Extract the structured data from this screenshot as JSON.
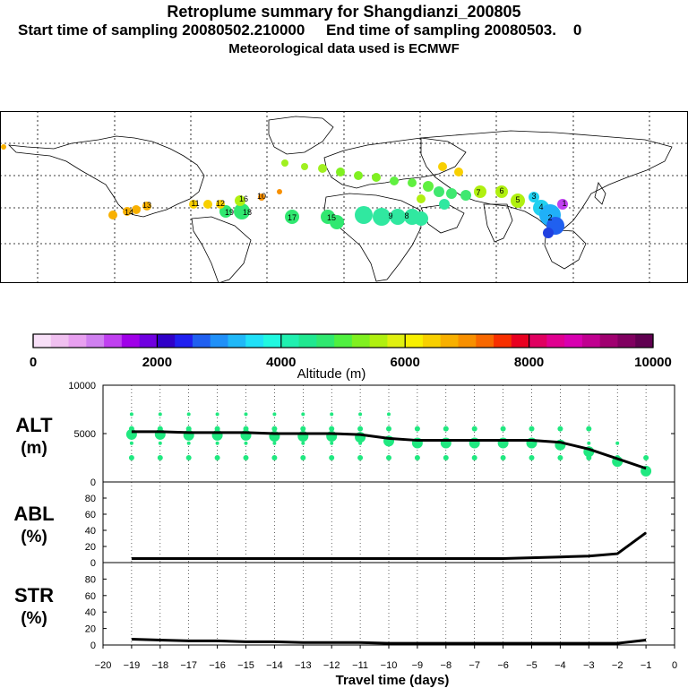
{
  "header": {
    "title": "Retroplume summary for Shangdianzi_200805",
    "start_label": "Start time of sampling 20080502.210000",
    "end_label": "End time of sampling 20080503.",
    "end_value": "0",
    "met_label": "Meteorological data used is ECMWF"
  },
  "colorbar": {
    "ticks": [
      "0",
      "2000",
      "4000",
      "6000",
      "8000",
      "10000"
    ],
    "label": "Altitude (m)",
    "colors": [
      "#f8e0f8",
      "#f0c0f0",
      "#e8a0f0",
      "#d080f0",
      "#c040f0",
      "#a000e8",
      "#7000e0",
      "#3000c8",
      "#2020f0",
      "#2060f0",
      "#2090f8",
      "#20b8f8",
      "#20e0f8",
      "#20f8e0",
      "#20f0b0",
      "#20e890",
      "#30e870",
      "#50f040",
      "#80f020",
      "#b0f010",
      "#e0f010",
      "#f8f000",
      "#f8d000",
      "#f8b000",
      "#f89000",
      "#f86800",
      "#f83000",
      "#e80020",
      "#e00060",
      "#e00090",
      "#d800b0",
      "#c00090",
      "#a00070",
      "#800060",
      "#600050"
    ]
  },
  "map": {
    "labels": [
      "19",
      "18",
      "17",
      "16",
      "15",
      "14",
      "13",
      "12",
      "11",
      "10",
      "9",
      "8",
      "7",
      "6",
      "5",
      "4",
      "3",
      "2",
      "1"
    ]
  },
  "chart_data": [
    {
      "type": "line",
      "name": "ALT",
      "ylabel": "ALT",
      "yunit": "(m)",
      "xlabel": "Travel time (days)",
      "ylim": [
        0,
        10000
      ],
      "yticks": [
        "0",
        "5000",
        "10000"
      ],
      "x": [
        -19,
        -18,
        -17,
        -16,
        -15,
        -14,
        -13,
        -12,
        -11,
        -10,
        -9,
        -8,
        -7,
        -6,
        -5,
        -4,
        -3,
        -2,
        -1
      ],
      "values": [
        5200,
        5200,
        5100,
        5100,
        5100,
        5000,
        5000,
        5000,
        4900,
        4500,
        4300,
        4300,
        4300,
        4300,
        4300,
        4100,
        3400,
        2400,
        1400
      ],
      "scatter_rows": [
        7000,
        5500,
        4000,
        2500
      ],
      "scatter_color": "#20e880"
    },
    {
      "type": "line",
      "name": "ABL",
      "ylabel": "ABL",
      "yunit": "(%)",
      "ylim": [
        0,
        100
      ],
      "yticks": [
        "0",
        "20",
        "40",
        "60",
        "80"
      ],
      "x": [
        -19,
        -18,
        -17,
        -16,
        -15,
        -14,
        -13,
        -12,
        -11,
        -10,
        -9,
        -8,
        -7,
        -6,
        -5,
        -4,
        -3,
        -2,
        -1
      ],
      "values": [
        5,
        5,
        5,
        5,
        5,
        5,
        5,
        5,
        5,
        5,
        5,
        5,
        5,
        5,
        6,
        7,
        8,
        11,
        37
      ]
    },
    {
      "type": "line",
      "name": "STR",
      "ylabel": "STR",
      "yunit": "(%)",
      "ylim": [
        0,
        100
      ],
      "yticks": [
        "0",
        "20",
        "40",
        "60",
        "80"
      ],
      "x": [
        -19,
        -18,
        -17,
        -16,
        -15,
        -14,
        -13,
        -12,
        -11,
        -10,
        -9,
        -8,
        -7,
        -6,
        -5,
        -4,
        -3,
        -2,
        -1
      ],
      "values": [
        7,
        6,
        5,
        5,
        4,
        4,
        3,
        3,
        3,
        2,
        2,
        2,
        2,
        2,
        2,
        2,
        2,
        2,
        6
      ]
    }
  ],
  "xaxis": {
    "ticks": [
      "−20",
      "−19",
      "−18",
      "−17",
      "−16",
      "−15",
      "−14",
      "−13",
      "−12",
      "−11",
      "−10",
      "−9",
      "−8",
      "−7",
      "−6",
      "−5",
      "−4",
      "−3",
      "−2",
      "−1",
      "0"
    ],
    "label": "Travel time (days)"
  }
}
